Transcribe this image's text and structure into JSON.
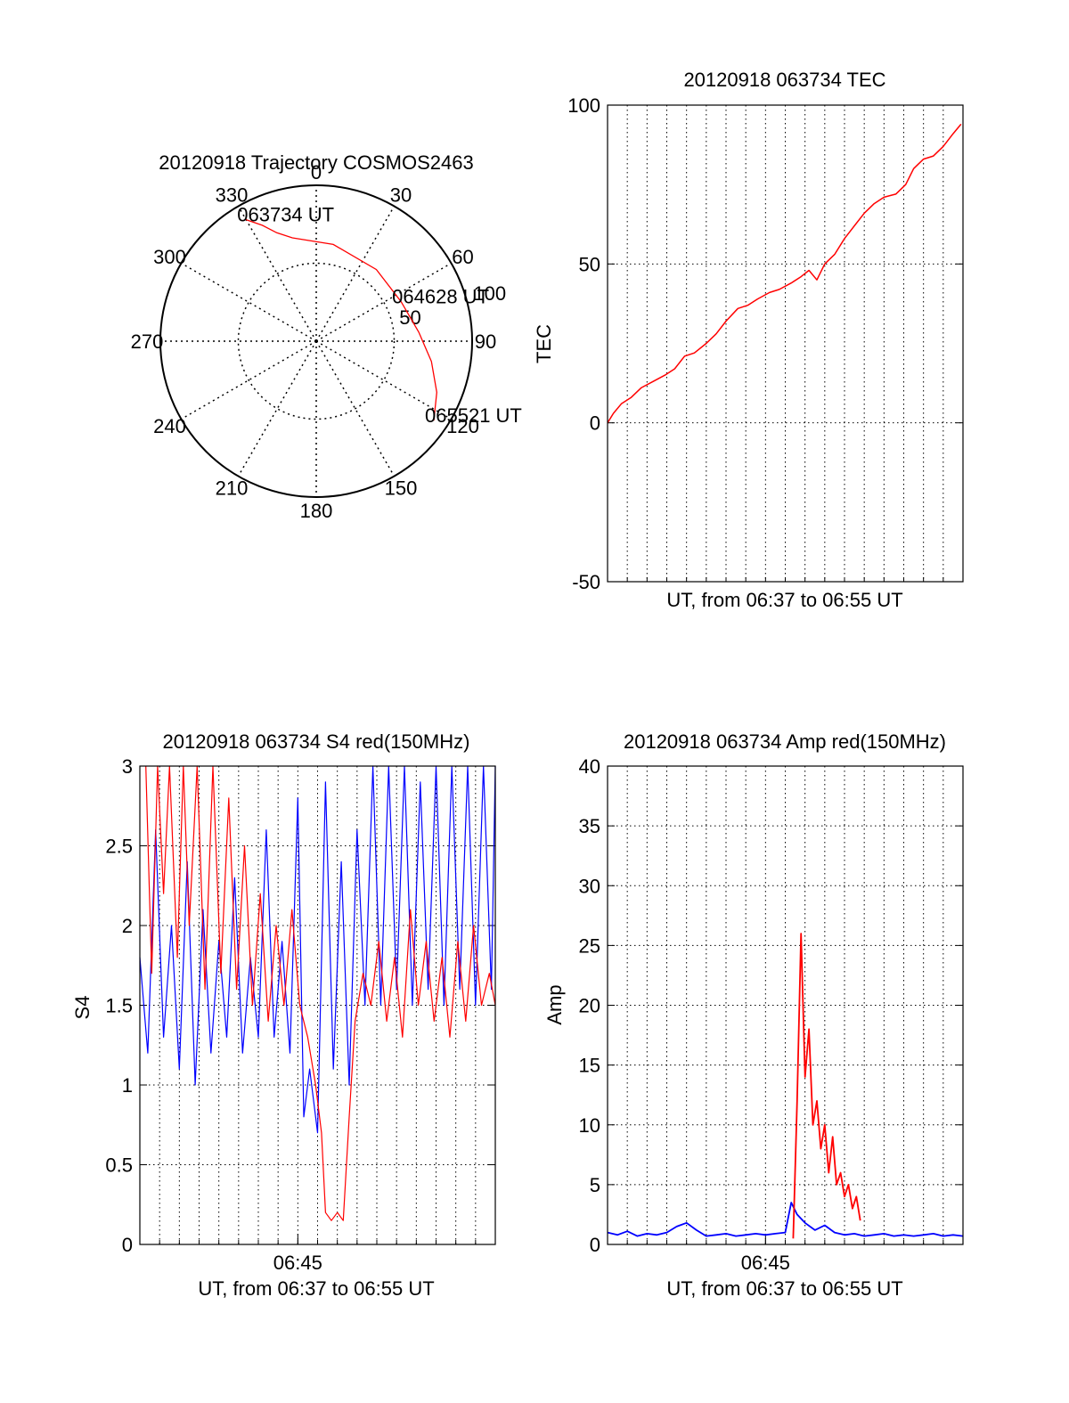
{
  "colors": {
    "red": "#ff0000",
    "blue": "#0000ff",
    "axis": "#000000",
    "grid": "#000000"
  },
  "chart_data": [
    {
      "type": "polar",
      "title": "20120918 Trajectory COSMOS2463",
      "angle_labels": [
        "0",
        "30",
        "60",
        "90",
        "120",
        "150",
        "180",
        "210",
        "240",
        "270",
        "300",
        "330"
      ],
      "radius_labels": [
        "50",
        "100"
      ],
      "rlim": [
        0,
        100
      ],
      "grid": true,
      "trajectory": {
        "color": "#ff0000",
        "points": [
          {
            "az": 330,
            "r": 90
          },
          {
            "az": 335,
            "r": 82
          },
          {
            "az": 340,
            "r": 74
          },
          {
            "az": 347,
            "r": 68
          },
          {
            "az": 10,
            "r": 63
          },
          {
            "az": 40,
            "r": 60
          },
          {
            "az": 65,
            "r": 60
          },
          {
            "az": 85,
            "r": 66
          },
          {
            "az": 100,
            "r": 75
          },
          {
            "az": 113,
            "r": 84
          },
          {
            "az": 124,
            "r": 91
          }
        ]
      },
      "annotations": [
        {
          "text": "063734 UT",
          "az": 330,
          "r": 90
        },
        {
          "text": "064628 UT",
          "az": 65,
          "r": 60
        },
        {
          "text": "065521 UT",
          "az": 124,
          "r": 91
        }
      ]
    },
    {
      "type": "line",
      "title": "20120918 063734 TEC",
      "xlabel": "UT, from 06:37 to 06:55 UT",
      "ylabel": "TEC",
      "xlim": [
        "06:37",
        "06:55"
      ],
      "ylim": [
        -50,
        100
      ],
      "yticks": [
        "-50",
        "0",
        "50",
        "100"
      ],
      "grid": true,
      "series": [
        {
          "color": "#ff0000",
          "points": [
            [
              0,
              0
            ],
            [
              0.3,
              3
            ],
            [
              0.7,
              6
            ],
            [
              1.2,
              8
            ],
            [
              1.7,
              11
            ],
            [
              2.3,
              13
            ],
            [
              2.9,
              15
            ],
            [
              3.4,
              17
            ],
            [
              3.9,
              21
            ],
            [
              4.4,
              22
            ],
            [
              5.0,
              25
            ],
            [
              5.5,
              28
            ],
            [
              6.0,
              32
            ],
            [
              6.6,
              36
            ],
            [
              7.1,
              37
            ],
            [
              7.6,
              39
            ],
            [
              8.2,
              41
            ],
            [
              8.7,
              42
            ],
            [
              9.3,
              44
            ],
            [
              9.8,
              46
            ],
            [
              10.2,
              48
            ],
            [
              10.6,
              45
            ],
            [
              11.0,
              50
            ],
            [
              11.5,
              53
            ],
            [
              12.0,
              58
            ],
            [
              12.5,
              62
            ],
            [
              13.0,
              66
            ],
            [
              13.5,
              69
            ],
            [
              14.0,
              71
            ],
            [
              14.6,
              72
            ],
            [
              15.1,
              75
            ],
            [
              15.5,
              80
            ],
            [
              16.0,
              83
            ],
            [
              16.5,
              84
            ],
            [
              17.0,
              87
            ],
            [
              17.5,
              91
            ],
            [
              17.9,
              94
            ]
          ]
        }
      ]
    },
    {
      "type": "line",
      "title": "20120918 063734 S4 red(150MHz)",
      "xlabel": "UT, from 06:37 to 06:55 UT",
      "ylabel": "S4",
      "xlim": [
        "06:37",
        "06:55"
      ],
      "xticks": [
        "06:45"
      ],
      "ylim": [
        0,
        3
      ],
      "yticks": [
        "0",
        "0.5",
        "1",
        "1.5",
        "2",
        "2.5",
        "3"
      ],
      "grid": true,
      "series": [
        {
          "color": "#0000ff",
          "points": [
            [
              0,
              1.8
            ],
            [
              0.4,
              1.2
            ],
            [
              0.8,
              2.6
            ],
            [
              1.2,
              1.3
            ],
            [
              1.6,
              2.0
            ],
            [
              2.0,
              1.1
            ],
            [
              2.4,
              2.4
            ],
            [
              2.8,
              1.0
            ],
            [
              3.2,
              2.1
            ],
            [
              3.6,
              1.2
            ],
            [
              4.0,
              1.9
            ],
            [
              4.4,
              1.3
            ],
            [
              4.8,
              2.3
            ],
            [
              5.2,
              1.2
            ],
            [
              5.6,
              1.8
            ],
            [
              6.0,
              1.3
            ],
            [
              6.4,
              2.6
            ],
            [
              6.8,
              1.3
            ],
            [
              7.2,
              1.9
            ],
            [
              7.6,
              1.2
            ],
            [
              8.0,
              2.8
            ],
            [
              8.3,
              0.8
            ],
            [
              8.6,
              1.1
            ],
            [
              9.0,
              0.7
            ],
            [
              9.4,
              2.9
            ],
            [
              9.8,
              1.1
            ],
            [
              10.2,
              2.4
            ],
            [
              10.6,
              1.0
            ],
            [
              11.0,
              2.6
            ],
            [
              11.4,
              1.5
            ],
            [
              11.8,
              3.0
            ],
            [
              12.2,
              1.5
            ],
            [
              12.6,
              3.0
            ],
            [
              13.0,
              1.6
            ],
            [
              13.4,
              3.0
            ],
            [
              13.8,
              1.5
            ],
            [
              14.2,
              2.9
            ],
            [
              14.6,
              1.6
            ],
            [
              15.0,
              3.0
            ],
            [
              15.4,
              1.5
            ],
            [
              15.8,
              3.0
            ],
            [
              16.2,
              1.6
            ],
            [
              16.6,
              3.0
            ],
            [
              17.0,
              1.5
            ],
            [
              17.4,
              3.0
            ],
            [
              17.8,
              1.6
            ],
            [
              18.0,
              3.0
            ]
          ]
        },
        {
          "color": "#ff0000",
          "points": [
            [
              0.3,
              3.0
            ],
            [
              0.6,
              1.7
            ],
            [
              0.9,
              3.0
            ],
            [
              1.2,
              2.2
            ],
            [
              1.5,
              3.0
            ],
            [
              1.9,
              1.8
            ],
            [
              2.2,
              3.0
            ],
            [
              2.5,
              2.0
            ],
            [
              2.9,
              3.0
            ],
            [
              3.3,
              1.6
            ],
            [
              3.7,
              3.0
            ],
            [
              4.1,
              1.7
            ],
            [
              4.5,
              2.8
            ],
            [
              4.9,
              1.6
            ],
            [
              5.3,
              2.5
            ],
            [
              5.7,
              1.5
            ],
            [
              6.1,
              2.2
            ],
            [
              6.5,
              1.4
            ],
            [
              6.9,
              2.0
            ],
            [
              7.3,
              1.5
            ],
            [
              7.7,
              2.1
            ],
            [
              8.1,
              1.5
            ],
            [
              8.5,
              1.3
            ],
            [
              8.9,
              1.0
            ],
            [
              9.2,
              0.7
            ],
            [
              9.4,
              0.2
            ],
            [
              9.7,
              0.15
            ],
            [
              10.0,
              0.2
            ],
            [
              10.3,
              0.15
            ],
            [
              10.6,
              0.8
            ],
            [
              10.9,
              1.4
            ],
            [
              11.3,
              1.7
            ],
            [
              11.7,
              1.5
            ],
            [
              12.1,
              1.9
            ],
            [
              12.5,
              1.4
            ],
            [
              12.9,
              1.8
            ],
            [
              13.3,
              1.3
            ],
            [
              13.7,
              2.1
            ],
            [
              14.1,
              1.5
            ],
            [
              14.5,
              1.9
            ],
            [
              14.9,
              1.4
            ],
            [
              15.3,
              1.8
            ],
            [
              15.7,
              1.3
            ],
            [
              16.1,
              1.9
            ],
            [
              16.5,
              1.4
            ],
            [
              16.9,
              2.0
            ],
            [
              17.3,
              1.5
            ],
            [
              17.7,
              1.7
            ],
            [
              18.0,
              1.5
            ]
          ]
        }
      ]
    },
    {
      "type": "line",
      "title": "20120918 063734 Amp red(150MHz)",
      "xlabel": "UT, from 06:37 to 06:55 UT",
      "ylabel": "Amp",
      "xlim": [
        "06:37",
        "06:55"
      ],
      "xticks": [
        "06:45"
      ],
      "ylim": [
        0,
        40
      ],
      "yticks": [
        "0",
        "5",
        "10",
        "15",
        "20",
        "25",
        "30",
        "35",
        "40"
      ],
      "grid": true,
      "series": [
        {
          "color": "#0000ff",
          "points": [
            [
              0,
              1.0
            ],
            [
              0.5,
              0.8
            ],
            [
              1.0,
              1.1
            ],
            [
              1.5,
              0.7
            ],
            [
              2.0,
              0.9
            ],
            [
              2.5,
              0.8
            ],
            [
              3.0,
              1.0
            ],
            [
              3.5,
              1.5
            ],
            [
              4.0,
              1.8
            ],
            [
              4.5,
              1.2
            ],
            [
              5.0,
              0.7
            ],
            [
              5.5,
              0.8
            ],
            [
              6.0,
              0.9
            ],
            [
              6.5,
              0.7
            ],
            [
              7.0,
              0.8
            ],
            [
              7.5,
              0.9
            ],
            [
              8.0,
              0.8
            ],
            [
              8.5,
              0.9
            ],
            [
              9.0,
              1.0
            ],
            [
              9.3,
              3.5
            ],
            [
              9.6,
              2.5
            ],
            [
              10.0,
              1.8
            ],
            [
              10.5,
              1.2
            ],
            [
              11.0,
              1.6
            ],
            [
              11.5,
              1.0
            ],
            [
              12.0,
              0.8
            ],
            [
              12.5,
              0.9
            ],
            [
              13.0,
              0.7
            ],
            [
              13.5,
              0.8
            ],
            [
              14.0,
              0.9
            ],
            [
              14.5,
              0.7
            ],
            [
              15.0,
              0.8
            ],
            [
              15.5,
              0.7
            ],
            [
              16.0,
              0.8
            ],
            [
              16.5,
              0.9
            ],
            [
              17.0,
              0.7
            ],
            [
              17.5,
              0.8
            ],
            [
              18.0,
              0.7
            ]
          ]
        },
        {
          "color": "#ff0000",
          "points": [
            [
              9.4,
              0.5
            ],
            [
              9.6,
              12
            ],
            [
              9.8,
              26
            ],
            [
              10.0,
              14
            ],
            [
              10.2,
              18
            ],
            [
              10.4,
              10
            ],
            [
              10.6,
              12
            ],
            [
              10.8,
              8
            ],
            [
              11.0,
              10
            ],
            [
              11.2,
              6
            ],
            [
              11.4,
              9
            ],
            [
              11.6,
              5
            ],
            [
              11.8,
              6
            ],
            [
              12.0,
              4
            ],
            [
              12.2,
              5
            ],
            [
              12.4,
              3
            ],
            [
              12.6,
              4
            ],
            [
              12.8,
              2
            ]
          ]
        }
      ]
    }
  ]
}
